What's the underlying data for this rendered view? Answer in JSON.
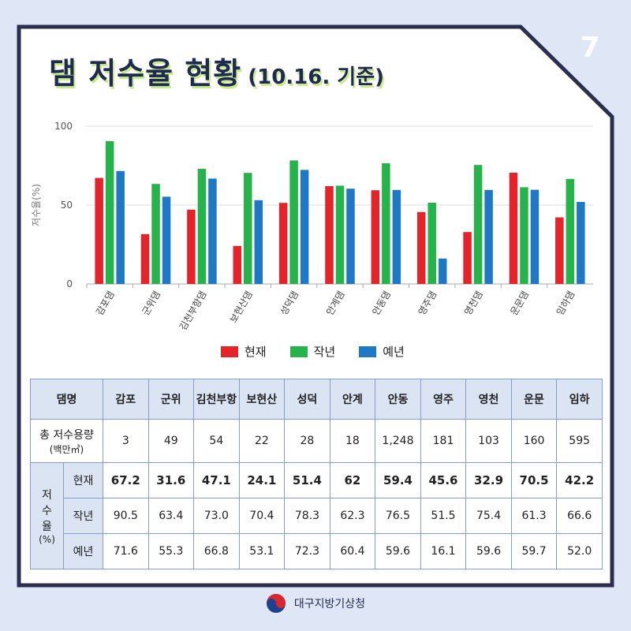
{
  "page_number": "7",
  "title": {
    "main": "댐 저수율 현황",
    "sub": "(10.16. 기준)"
  },
  "colors": {
    "현재": "#e3242b",
    "작년": "#27b34b",
    "예년": "#1f78c4",
    "frame": "#2a2f4f",
    "header": "#dbe4f3"
  },
  "chart_data": {
    "type": "bar",
    "categories": [
      "감포댐",
      "군위댐",
      "김천부항댐",
      "보현산댐",
      "성덕댐",
      "안계댐",
      "안동댐",
      "영주댐",
      "영천댐",
      "운문댐",
      "임하댐"
    ],
    "series": [
      {
        "name": "현재",
        "values": [
          67.2,
          31.6,
          47.1,
          24.1,
          51.4,
          62,
          59.4,
          45.6,
          32.9,
          70.5,
          42.2
        ]
      },
      {
        "name": "작년",
        "values": [
          90.5,
          63.4,
          73.0,
          70.4,
          78.3,
          62.3,
          76.5,
          51.5,
          75.4,
          61.3,
          66.6
        ]
      },
      {
        "name": "예년",
        "values": [
          71.6,
          55.3,
          66.8,
          53.1,
          72.3,
          60.4,
          59.6,
          16.1,
          59.6,
          59.7,
          52.0
        ]
      }
    ],
    "ylabel": "저수율(%)",
    "ylim": [
      0,
      100
    ],
    "yticks": [
      "0",
      "50",
      "100"
    ],
    "legend_position": "bottom",
    "grid": true
  },
  "table": {
    "corner": "댐명",
    "columns": [
      "감포",
      "군위",
      "김천부항",
      "보현산",
      "성덕",
      "안계",
      "안동",
      "영주",
      "영천",
      "운문",
      "임하"
    ],
    "capacity_label": "총 저수용량",
    "capacity_unit": "(백만㎥)",
    "capacity": [
      "3",
      "49",
      "54",
      "22",
      "28",
      "18",
      "1,248",
      "181",
      "103",
      "160",
      "595"
    ],
    "rate_label_chars": [
      "저",
      "수",
      "율"
    ],
    "rate_unit": "(%)",
    "rows": [
      {
        "label": "현재",
        "values": [
          "67.2",
          "31.6",
          "47.1",
          "24.1",
          "51.4",
          "62",
          "59.4",
          "45.6",
          "32.9",
          "70.5",
          "42.2"
        ]
      },
      {
        "label": "작년",
        "values": [
          "90.5",
          "63.4",
          "73.0",
          "70.4",
          "78.3",
          "62.3",
          "76.5",
          "51.5",
          "75.4",
          "61.3",
          "66.6"
        ]
      },
      {
        "label": "예년",
        "values": [
          "71.6",
          "55.3",
          "66.8",
          "53.1",
          "72.3",
          "60.4",
          "59.6",
          "16.1",
          "59.6",
          "59.7",
          "52.0"
        ]
      }
    ]
  },
  "footer": {
    "org": "대구지방기상청",
    "logo_icon": "taegeuk-logo-icon"
  }
}
